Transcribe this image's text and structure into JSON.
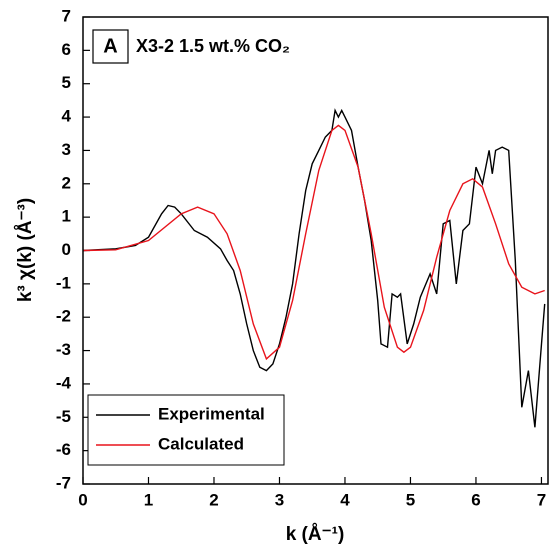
{
  "chart_data": {
    "type": "line",
    "annotation": {
      "box": "A",
      "text": "X3-2 1.5 wt.% CO₂"
    },
    "x_label": "k (Å⁻¹)",
    "y_label": "k³ χ(k) (Å⁻³)",
    "xlim": [
      0,
      7.1
    ],
    "ylim": [
      -7,
      7
    ],
    "xticks": [
      0,
      1,
      2,
      3,
      4,
      5,
      6,
      7
    ],
    "yticks": [
      -7,
      -6,
      -5,
      -4,
      -3,
      -2,
      -1,
      0,
      1,
      2,
      3,
      4,
      5,
      6,
      7
    ],
    "legend": "lower-left",
    "series": [
      {
        "name": "Experimental",
        "color": "#000000",
        "x": [
          0,
          0.5,
          0.8,
          1.0,
          1.2,
          1.3,
          1.4,
          1.5,
          1.7,
          1.9,
          2.1,
          2.2,
          2.3,
          2.4,
          2.5,
          2.6,
          2.7,
          2.8,
          2.9,
          3.0,
          3.1,
          3.2,
          3.3,
          3.4,
          3.5,
          3.6,
          3.7,
          3.8,
          3.85,
          3.9,
          3.95,
          4.0,
          4.1,
          4.2,
          4.3,
          4.4,
          4.5,
          4.55,
          4.65,
          4.72,
          4.8,
          4.85,
          4.95,
          5.05,
          5.15,
          5.3,
          5.4,
          5.5,
          5.6,
          5.7,
          5.8,
          5.9,
          6.0,
          6.1,
          6.2,
          6.25,
          6.3,
          6.4,
          6.5,
          6.6,
          6.7,
          6.8,
          6.9,
          7.0,
          7.05
        ],
        "values": [
          0,
          0.05,
          0.15,
          0.4,
          1.1,
          1.35,
          1.3,
          1.1,
          0.6,
          0.4,
          0.05,
          -0.3,
          -0.6,
          -1.3,
          -2.2,
          -3.0,
          -3.5,
          -3.6,
          -3.4,
          -2.8,
          -2.0,
          -1.0,
          0.5,
          1.8,
          2.6,
          3.0,
          3.4,
          3.6,
          4.2,
          4.0,
          4.2,
          4.0,
          3.6,
          2.5,
          1.5,
          0.3,
          -1.5,
          -2.8,
          -2.9,
          -1.3,
          -1.4,
          -1.3,
          -2.8,
          -2.2,
          -1.4,
          -0.7,
          -1.3,
          0.8,
          0.9,
          -1.0,
          0.6,
          0.8,
          2.5,
          2.0,
          3.0,
          2.3,
          3.0,
          3.1,
          3.0,
          -0.3,
          -4.7,
          -3.6,
          -5.3,
          -2.8,
          -1.6
        ]
      },
      {
        "name": "Calculated",
        "color": "#e8141c",
        "x": [
          0,
          0.5,
          1.0,
          1.5,
          1.75,
          2.0,
          2.2,
          2.4,
          2.6,
          2.8,
          3.0,
          3.2,
          3.4,
          3.6,
          3.8,
          3.9,
          4.0,
          4.2,
          4.4,
          4.6,
          4.8,
          4.9,
          5.0,
          5.2,
          5.4,
          5.6,
          5.8,
          5.95,
          6.1,
          6.3,
          6.5,
          6.7,
          6.9,
          7.05
        ],
        "values": [
          0,
          0.02,
          0.3,
          1.1,
          1.3,
          1.1,
          0.5,
          -0.6,
          -2.2,
          -3.25,
          -2.9,
          -1.5,
          0.5,
          2.4,
          3.6,
          3.75,
          3.6,
          2.5,
          0.5,
          -1.7,
          -2.9,
          -3.05,
          -2.9,
          -1.8,
          -0.2,
          1.2,
          2.0,
          2.15,
          1.9,
          0.8,
          -0.4,
          -1.1,
          -1.3,
          -1.2
        ]
      }
    ]
  }
}
